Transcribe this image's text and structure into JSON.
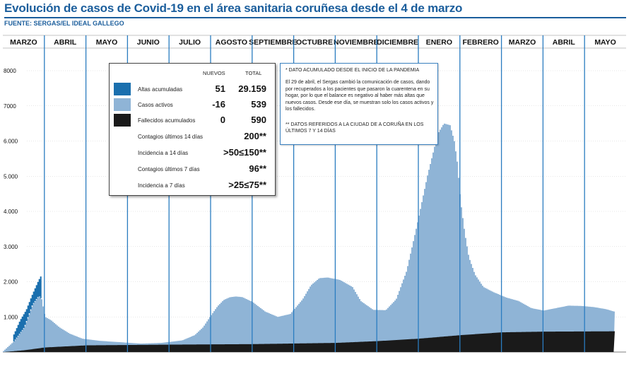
{
  "header": {
    "title": "Evolución de casos de Covid-19 en el área sanitaria coruñesa desde el 4 de marzo",
    "source": "FUENTE: SERGAS/EL IDEAL GALLEGO"
  },
  "legend": {
    "col_new": "NUEVOS",
    "col_total": "TOTAL",
    "rows": [
      {
        "label": "Altas acumuladas",
        "new": "51",
        "total": "29.159",
        "color": "#1a6fae"
      },
      {
        "label": "Casos activos",
        "new": "-16",
        "total": "539",
        "color": "#8fb4d6"
      },
      {
        "label": "Fallecidos acumulados",
        "new": "0",
        "total": "590",
        "color": "#1a1a1a"
      }
    ],
    "extras": [
      {
        "label": "Contagios últimos 14 días",
        "value": "200**"
      },
      {
        "label": "Incidencia a 14 días",
        "value": ">50≤150**"
      },
      {
        "label": "Contagios últimos 7 días",
        "value": "96**"
      },
      {
        "label": "Incidencia a 7 días",
        "value": ">25≤75**"
      }
    ]
  },
  "notes": {
    "note1": "* DATO ACUMULADO DESDE EL INICIO DE LA PANDEMIA",
    "note2": "El 29 de abril, el Sergas cambió la comunicación de casos, dando por recuperados a los pacientes que pasaron la cuarentena en su hogar, por lo que el balance es negativo al haber más altas que nuevos casos. Desde ese día, se muestran solo los casos activos y los fallecidos.",
    "note3": "** DATOS REFERIDOS A LA CIUDAD DE A CORUÑA EN LOS ÚLTIMOS 7 Y 14 DÍAS"
  },
  "chart_data": {
    "type": "area",
    "title": "Evolución de casos de Covid-19 en el área sanitaria coruñesa desde el 4 de marzo",
    "xlabel": "",
    "ylabel": "",
    "ylim": [
      0,
      8000
    ],
    "yticks": [
      "8000",
      "7000",
      "6.000",
      "5.000",
      "4.000",
      "3.000",
      "2.000",
      "1.000"
    ],
    "ytick_values": [
      8000,
      7000,
      6000,
      5000,
      4000,
      3000,
      2000,
      1000
    ],
    "months": [
      "MARZO",
      "ABRIL",
      "MAYO",
      "JUNIO",
      "JULIO",
      "AGOSTO",
      "SEPTIEMBRE",
      "OCTUBRE",
      "NOVIEMBRE",
      "DICIEMBRE",
      "ENERO",
      "FEBRERO",
      "MARZO",
      "ABRIL",
      "MAYO"
    ],
    "grid": true,
    "legend_placement": "top-left",
    "colors": {
      "altas": "#1a6fae",
      "activos": "#8fb4d6",
      "fallecidos": "#1a1a1a",
      "month_line": "#2a7cc0"
    },
    "series": [
      {
        "name": "Casos activos",
        "x": [
          0,
          0.25,
          0.5,
          0.7,
          0.85,
          0.92,
          1.0,
          1.15,
          1.35,
          1.6,
          1.9,
          2.3,
          2.8,
          3.3,
          3.8,
          4.3,
          4.6,
          4.8,
          5.0,
          5.15,
          5.3,
          5.45,
          5.6,
          5.75,
          6.0,
          6.3,
          6.6,
          6.9,
          7.2,
          7.4,
          7.6,
          7.8,
          8.1,
          8.4,
          8.6,
          8.9,
          9.2,
          9.45,
          9.7,
          9.95,
          10.2,
          10.45,
          10.6,
          10.75,
          10.85,
          10.92,
          11.0,
          11.1,
          11.2,
          11.35,
          11.55,
          11.8,
          12.1,
          12.4,
          12.7,
          13.0,
          13.3,
          13.6,
          13.9,
          14.2,
          14.5,
          14.7
        ],
        "values": [
          30,
          300,
          700,
          1350,
          1600,
          1500,
          1000,
          900,
          700,
          520,
          380,
          320,
          280,
          240,
          260,
          330,
          480,
          700,
          1050,
          1300,
          1480,
          1560,
          1580,
          1560,
          1420,
          1150,
          1000,
          1080,
          1500,
          1900,
          2100,
          2120,
          2050,
          1850,
          1450,
          1200,
          1190,
          1500,
          2300,
          3600,
          5000,
          6200,
          6500,
          6450,
          6000,
          5400,
          4300,
          3400,
          2700,
          2200,
          1850,
          1700,
          1550,
          1450,
          1250,
          1180,
          1250,
          1320,
          1310,
          1280,
          1220,
          1150
        ]
      },
      {
        "name": "Altas acumuladas",
        "x": [
          0.25,
          0.4,
          0.55,
          0.7,
          0.85,
          0.92
        ],
        "values": [
          500,
          900,
          1200,
          1650,
          2050,
          2200
        ]
      },
      {
        "name": "Fallecidos acumulados",
        "x": [
          0,
          0.5,
          1.0,
          2.0,
          4.0,
          6.0,
          8.0,
          9.0,
          10.0,
          11.0,
          12.0,
          13.0,
          14.7
        ],
        "values": [
          0,
          50,
          130,
          190,
          210,
          225,
          260,
          310,
          380,
          480,
          560,
          580,
          590
        ]
      }
    ]
  }
}
